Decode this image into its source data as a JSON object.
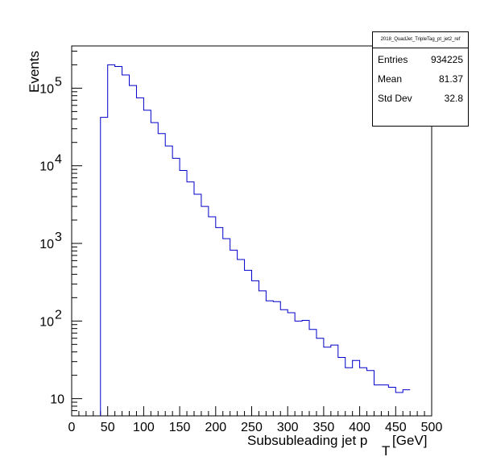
{
  "chart_data": {
    "type": "histogram",
    "title": "",
    "xlabel": "Subsubleading jet p",
    "xlabel_sub": "T",
    "xlabel_unit": "[GeV]",
    "ylabel": "Events",
    "xlim": [
      0,
      500
    ],
    "ylim": [
      6,
      350000
    ],
    "y_scale": "log",
    "x_ticks": [
      "0",
      "50",
      "100",
      "150",
      "200",
      "250",
      "300",
      "350",
      "400",
      "450",
      "500"
    ],
    "y_ticks": [
      {
        "base": "10",
        "exp": ""
      },
      {
        "base": "10",
        "exp": "2"
      },
      {
        "base": "10",
        "exp": "3"
      },
      {
        "base": "10",
        "exp": "4"
      },
      {
        "base": "10",
        "exp": "5"
      }
    ],
    "line_color": "#0000cc",
    "bin_width": 10,
    "bin_edges_start": 40,
    "values": [
      42000,
      200000,
      190000,
      148000,
      108000,
      75000,
      52000,
      36000,
      26000,
      18000,
      12500,
      8700,
      6200,
      4300,
      3000,
      2200,
      1600,
      1150,
      820,
      620,
      450,
      330,
      245,
      182,
      178,
      140,
      128,
      100,
      102,
      78,
      60,
      46,
      49,
      34,
      25,
      31,
      25,
      23,
      15,
      15,
      14,
      12,
      13
    ]
  },
  "stats_box": {
    "title": "2018_QuadJet_TripleTag_pt_jet2_ref",
    "rows": [
      {
        "label": "Entries",
        "value": "934225"
      },
      {
        "label": "Mean",
        "value": "81.37"
      },
      {
        "label": "Std Dev",
        "value": "32.8"
      }
    ]
  }
}
